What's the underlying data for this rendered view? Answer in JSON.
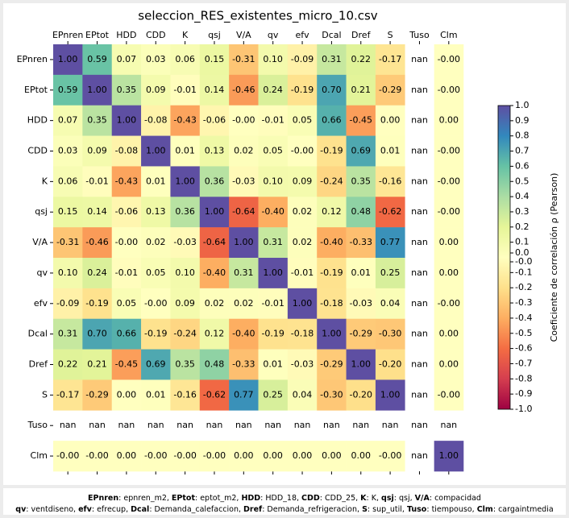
{
  "chart_data": {
    "type": "heatmap",
    "title": "seleccion_RES_existentes_micro_10.csv",
    "x": [
      "EPnren",
      "EPtot",
      "HDD",
      "CDD",
      "K",
      "qsj",
      "V/A",
      "qv",
      "efv",
      "Dcal",
      "Dref",
      "S",
      "Tuso",
      "Clm"
    ],
    "y": [
      "EPnren",
      "EPtot",
      "HDD",
      "CDD",
      "K",
      "qsj",
      "V/A",
      "qv",
      "efv",
      "Dcal",
      "Dref",
      "S",
      "Tuso",
      "Clm"
    ],
    "values": [
      [
        1.0,
        0.59,
        0.07,
        0.03,
        0.06,
        0.15,
        -0.31,
        0.1,
        -0.09,
        0.31,
        0.22,
        -0.17,
        null,
        0
      ],
      [
        0.59,
        1.0,
        0.35,
        0.09,
        -0.01,
        0.14,
        -0.46,
        0.24,
        -0.19,
        0.7,
        0.21,
        -0.29,
        null,
        0
      ],
      [
        0.07,
        0.35,
        1.0,
        -0.08,
        -0.43,
        -0.06,
        0,
        -0.01,
        0.05,
        0.66,
        -0.45,
        0.0,
        null,
        0.0
      ],
      [
        0.03,
        0.09,
        -0.08,
        1.0,
        0.01,
        0.13,
        0.02,
        0.05,
        0,
        -0.19,
        0.69,
        0.01,
        null,
        0
      ],
      [
        0.06,
        -0.01,
        -0.43,
        0.01,
        1.0,
        0.36,
        -0.03,
        0.1,
        0.09,
        -0.24,
        0.35,
        -0.16,
        null,
        0
      ],
      [
        0.15,
        0.14,
        -0.06,
        0.13,
        0.36,
        1.0,
        -0.64,
        -0.4,
        0.02,
        0.12,
        0.48,
        -0.62,
        null,
        0
      ],
      [
        -0.31,
        -0.46,
        0,
        0.02,
        -0.03,
        -0.64,
        1.0,
        0.31,
        0.02,
        -0.4,
        -0.33,
        0.77,
        null,
        0.0
      ],
      [
        0.1,
        0.24,
        -0.01,
        0.05,
        0.1,
        -0.4,
        0.31,
        1.0,
        -0.01,
        -0.19,
        0.01,
        0.25,
        null,
        0.0
      ],
      [
        -0.09,
        -0.19,
        0.05,
        0,
        0.09,
        0.02,
        0.02,
        -0.01,
        1.0,
        -0.18,
        -0.03,
        0.04,
        null,
        0
      ],
      [
        0.31,
        0.7,
        0.66,
        -0.19,
        -0.24,
        0.12,
        -0.4,
        -0.19,
        -0.18,
        1.0,
        -0.29,
        -0.3,
        null,
        0.0
      ],
      [
        0.22,
        0.21,
        -0.45,
        0.69,
        0.35,
        0.48,
        -0.33,
        0.01,
        -0.03,
        -0.29,
        1.0,
        -0.2,
        null,
        0.0
      ],
      [
        -0.17,
        -0.29,
        0.0,
        0.01,
        -0.16,
        -0.62,
        0.77,
        0.25,
        0.04,
        -0.3,
        -0.2,
        1.0,
        null,
        0
      ],
      [
        null,
        null,
        null,
        null,
        null,
        null,
        null,
        null,
        null,
        null,
        null,
        null,
        null,
        null
      ],
      [
        0,
        0,
        0.0,
        0,
        0,
        0,
        0.0,
        0.0,
        0.0,
        0.0,
        0.0,
        0,
        null,
        1.0
      ]
    ],
    "value_labels": [
      [
        "1.00",
        "0.59",
        "0.07",
        "0.03",
        "0.06",
        "0.15",
        "-0.31",
        "0.10",
        "-0.09",
        "0.31",
        "0.22",
        "-0.17",
        "nan",
        "-0.00"
      ],
      [
        "0.59",
        "1.00",
        "0.35",
        "0.09",
        "-0.01",
        "0.14",
        "-0.46",
        "0.24",
        "-0.19",
        "0.70",
        "0.21",
        "-0.29",
        "nan",
        "-0.00"
      ],
      [
        "0.07",
        "0.35",
        "1.00",
        "-0.08",
        "-0.43",
        "-0.06",
        "-0.00",
        "-0.01",
        "0.05",
        "0.66",
        "-0.45",
        "0.00",
        "nan",
        "0.00"
      ],
      [
        "0.03",
        "0.09",
        "-0.08",
        "1.00",
        "0.01",
        "0.13",
        "0.02",
        "0.05",
        "-0.00",
        "-0.19",
        "0.69",
        "0.01",
        "nan",
        "-0.00"
      ],
      [
        "0.06",
        "-0.01",
        "-0.43",
        "0.01",
        "1.00",
        "0.36",
        "-0.03",
        "0.10",
        "0.09",
        "-0.24",
        "0.35",
        "-0.16",
        "nan",
        "-0.00"
      ],
      [
        "0.15",
        "0.14",
        "-0.06",
        "0.13",
        "0.36",
        "1.00",
        "-0.64",
        "-0.40",
        "0.02",
        "0.12",
        "0.48",
        "-0.62",
        "nan",
        "-0.00"
      ],
      [
        "-0.31",
        "-0.46",
        "-0.00",
        "0.02",
        "-0.03",
        "-0.64",
        "1.00",
        "0.31",
        "0.02",
        "-0.40",
        "-0.33",
        "0.77",
        "nan",
        "0.00"
      ],
      [
        "0.10",
        "0.24",
        "-0.01",
        "0.05",
        "0.10",
        "-0.40",
        "0.31",
        "1.00",
        "-0.01",
        "-0.19",
        "0.01",
        "0.25",
        "nan",
        "0.00"
      ],
      [
        "-0.09",
        "-0.19",
        "0.05",
        "-0.00",
        "0.09",
        "0.02",
        "0.02",
        "-0.01",
        "1.00",
        "-0.18",
        "-0.03",
        "0.04",
        "nan",
        "-0.00"
      ],
      [
        "0.31",
        "0.70",
        "0.66",
        "-0.19",
        "-0.24",
        "0.12",
        "-0.40",
        "-0.19",
        "-0.18",
        "1.00",
        "-0.29",
        "-0.30",
        "nan",
        "0.00"
      ],
      [
        "0.22",
        "0.21",
        "-0.45",
        "0.69",
        "0.35",
        "0.48",
        "-0.33",
        "0.01",
        "-0.03",
        "-0.29",
        "1.00",
        "-0.20",
        "nan",
        "0.00"
      ],
      [
        "-0.17",
        "-0.29",
        "0.00",
        "0.01",
        "-0.16",
        "-0.62",
        "0.77",
        "0.25",
        "0.04",
        "-0.30",
        "-0.20",
        "1.00",
        "nan",
        "-0.00"
      ],
      [
        "nan",
        "nan",
        "nan",
        "nan",
        "nan",
        "nan",
        "nan",
        "nan",
        "nan",
        "nan",
        "nan",
        "nan",
        "nan",
        "nan"
      ],
      [
        "-0.00",
        "-0.00",
        "0.00",
        "-0.00",
        "-0.00",
        "-0.00",
        "0.00",
        "0.00",
        "0.00",
        "0.00",
        "0.00",
        "-0.00",
        "nan",
        "1.00"
      ]
    ],
    "colormap": [
      "#9e0142",
      "#d53e4f",
      "#f46d43",
      "#fdae61",
      "#fee08b",
      "#ffffbf",
      "#e6f598",
      "#abdda4",
      "#66c2a5",
      "#3288bd",
      "#5e4fa2"
    ],
    "colorbar": {
      "label": "Coeficiente de correlación ρ (Pearson)",
      "lim": [
        -1,
        1
      ],
      "ticks": [
        {
          "value": 1,
          "label": "1.0"
        },
        0.9,
        0.8,
        0.7,
        0.6,
        0.5,
        0.4,
        0.3,
        0.2,
        0.1,
        {
          "value": 0,
          "label": "0.0"
        },
        {
          "value": 0,
          "label": "-0.0"
        },
        -0.1,
        -0.2,
        -0.3,
        -0.4,
        -0.5,
        -0.6,
        -0.7,
        -0.8,
        -0.9,
        {
          "value": -1,
          "label": "-1.0"
        }
      ]
    },
    "footer": [
      [
        {
          "key": "EPnren",
          "text": ": epnren_m2, "
        },
        {
          "key": "EPtot",
          "text": ": eptot_m2, "
        },
        {
          "key": "HDD",
          "text": ": HDD_18, "
        },
        {
          "key": "CDD",
          "text": ": CDD_25, "
        },
        {
          "key": "K",
          "text": ": K, "
        },
        {
          "key": "qsj",
          "text": ": qsj, "
        },
        {
          "key": "V/A",
          "text": ": compacidad"
        }
      ],
      [
        {
          "key": "qv",
          "text": ": ventdiseno, "
        },
        {
          "key": "efv",
          "text": ": efrecup, "
        },
        {
          "key": "Dcal",
          "text": ": Demanda_calefaccion, "
        },
        {
          "key": "Dref",
          "text": ": Demanda_refrigeracion, "
        },
        {
          "key": "S",
          "text": ": sup_util, "
        },
        {
          "key": "Tuso",
          "text": ": tiempouso, "
        },
        {
          "key": "Clm",
          "text": ": cargaintmedia"
        }
      ]
    ]
  }
}
